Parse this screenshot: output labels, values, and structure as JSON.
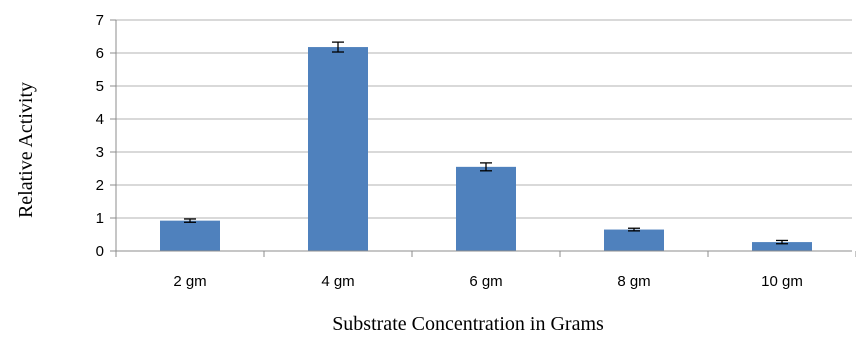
{
  "chart_data": {
    "type": "bar",
    "title": "",
    "xlabel": "Substrate  Concentration  in  Grams",
    "ylabel": "Relative  Activity",
    "categories": [
      "2 gm",
      "4 gm",
      "6 gm",
      "8 gm",
      "10 gm"
    ],
    "values": [
      0.92,
      6.18,
      2.55,
      0.65,
      0.27
    ],
    "errors": [
      0.05,
      0.15,
      0.12,
      0.04,
      0.05
    ],
    "ylim": [
      0,
      7
    ],
    "yticks": [
      0,
      1,
      2,
      3,
      4,
      5,
      6,
      7
    ],
    "grid": true,
    "legend": "none",
    "colors": {
      "bar": "#4f81bd",
      "grid": "#b3b3b3",
      "axis": "#8c8c8c",
      "error_bar": "#000000"
    }
  }
}
